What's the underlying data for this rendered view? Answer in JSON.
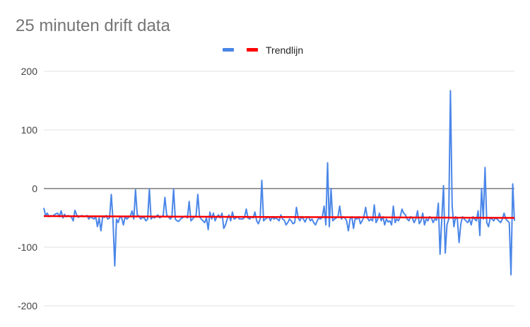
{
  "chart_data": {
    "type": "line",
    "title": "25 minuten drift data",
    "xlabel": "",
    "ylabel": "",
    "ylim": [
      -200,
      200
    ],
    "yticks": [
      200,
      100,
      0,
      -100,
      -200
    ],
    "y_tick_labels": [
      "200",
      "100",
      "0",
      "-100",
      "-200"
    ],
    "grid": true,
    "legend_position": "top-center",
    "colors": {
      "series": "#4a86e8",
      "trend": "#ff0000",
      "zero_line": "#7a7a7a",
      "grid": "#e0e0e0",
      "title": "#757575",
      "tick": "#444444"
    },
    "series": [
      {
        "values": [
          -33,
          -46,
          -42,
          -48,
          -46,
          -47,
          -45,
          -43,
          -42,
          -48,
          -38,
          -50,
          -44,
          -48,
          -46,
          -47,
          -49,
          -55,
          -37,
          -45,
          -49,
          -47,
          -46,
          -48,
          -47,
          -46,
          -52,
          -48,
          -50,
          -52,
          -48,
          -65,
          -50,
          -72,
          -48,
          -49,
          -46,
          -52,
          -50,
          -10,
          -55,
          -132,
          -52,
          -58,
          -48,
          -50,
          -62,
          -48,
          -52,
          -49,
          -47,
          -38,
          -52,
          -2,
          -45,
          -47,
          -52,
          -49,
          -50,
          -55,
          -52,
          -1,
          -52,
          -48,
          -50,
          -47,
          -45,
          -50,
          -48,
          -46,
          -15,
          -45,
          -48,
          -52,
          -49,
          -1,
          -52,
          -55,
          -56,
          -52,
          -50,
          -48,
          -47,
          -50,
          -22,
          -55,
          -52,
          -48,
          -46,
          -10,
          -48,
          -52,
          -55,
          -58,
          -50,
          -70,
          -40,
          -52,
          -42,
          -55,
          -48,
          -45,
          -50,
          -42,
          -68,
          -62,
          -52,
          -45,
          -55,
          -40,
          -52,
          -50,
          -48,
          -52,
          -52,
          -52,
          -49,
          -35,
          -50,
          -52,
          -48,
          -50,
          -40,
          -55,
          -60,
          -52,
          14,
          -55,
          -52,
          -50,
          -48,
          -55,
          -48,
          -52,
          -50,
          -52,
          -55,
          -45,
          -52,
          -54,
          -62,
          -58,
          -52,
          -55,
          -60,
          -58,
          -32,
          -50,
          -55,
          -48,
          -52,
          -57,
          -50,
          -48,
          -55,
          -52,
          -58,
          -62,
          -55,
          -50,
          -52,
          -48,
          -30,
          -62,
          44,
          -65,
          0,
          -55,
          -52,
          -50,
          -48,
          -30,
          -52,
          -48,
          -50,
          -55,
          -72,
          -52,
          -48,
          -68,
          -50,
          -52,
          -48,
          -60,
          -55,
          -48,
          -32,
          -50,
          -55,
          -52,
          -55,
          -28,
          -58,
          -52,
          -42,
          -55,
          -48,
          -62,
          -52,
          -57,
          -55,
          -62,
          -30,
          -58,
          -52,
          -55,
          -48,
          -35,
          -42,
          -45,
          -52,
          -55,
          -48,
          -50,
          -58,
          -52,
          -38,
          -60,
          -55,
          -42,
          -62,
          -52,
          -55,
          -48,
          -50,
          -58,
          -52,
          -54,
          -25,
          -112,
          -52,
          5,
          -110,
          -62,
          -52,
          167,
          -30,
          -65,
          -48,
          -52,
          -92,
          -60,
          -48,
          -52,
          -55,
          -58,
          -52,
          -62,
          -48,
          -52,
          -55,
          -38,
          -80,
          0,
          -52,
          36,
          -58,
          -65,
          -50,
          -52,
          -55,
          -50,
          -52,
          -55,
          -58,
          -52,
          -42,
          -52,
          -55,
          -58,
          -147,
          8,
          -55
        ]
      },
      {
        "name": "Trendlijn",
        "values": [
          -47,
          -50
        ]
      }
    ]
  }
}
